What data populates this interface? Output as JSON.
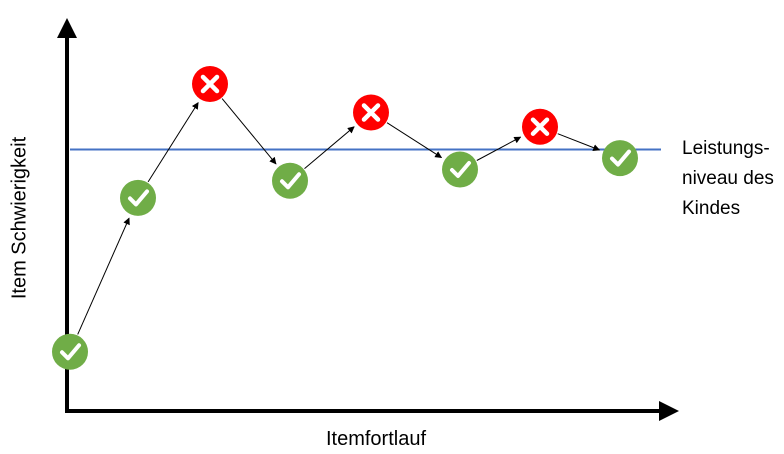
{
  "diagram": {
    "x_axis_label": "Itemfortlauf",
    "y_axis_label": "Item Schwierigkeit",
    "level_label_lines": [
      "Leistungs-",
      "niveau des",
      "Kindes"
    ],
    "colors": {
      "correct": "#70ad47",
      "incorrect": "#ff0000",
      "level_line": "#4472c4",
      "axis": "#000000",
      "arrow": "#000000"
    },
    "item_sequence": [
      {
        "item": 1,
        "result": "correct",
        "difficulty": 0.05
      },
      {
        "item": 2,
        "result": "correct",
        "difficulty": 0.59
      },
      {
        "item": 3,
        "result": "incorrect",
        "difficulty": 0.99
      },
      {
        "item": 4,
        "result": "correct",
        "difficulty": 0.65
      },
      {
        "item": 5,
        "result": "incorrect",
        "difficulty": 0.89
      },
      {
        "item": 6,
        "result": "correct",
        "difficulty": 0.69
      },
      {
        "item": 7,
        "result": "incorrect",
        "difficulty": 0.84
      },
      {
        "item": 8,
        "result": "correct",
        "difficulty": 0.73
      }
    ],
    "ability_level": 0.76,
    "icons": {
      "correct": "checkmark-icon",
      "incorrect": "cross-icon"
    }
  }
}
